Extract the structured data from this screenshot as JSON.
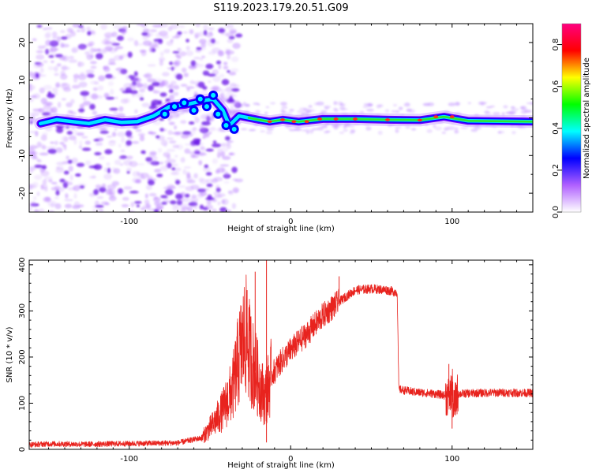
{
  "figure_title": "S119.2023.179.20.51.G09",
  "chart_data": [
    {
      "type": "heatmap",
      "subtype": "spectrogram",
      "xlabel": "Height of straight line (km)",
      "ylabel": "Frequency (Hz)",
      "xlim": [
        -162,
        150
      ],
      "ylim": [
        -25,
        25
      ],
      "x_ticks": [
        -100,
        0,
        100
      ],
      "y_ticks": [
        -20,
        -10,
        0,
        10,
        20
      ],
      "grid": false,
      "colorbar": {
        "label": "Normalized spectral amplitude",
        "ticks": [
          0.0,
          0.2,
          0.4,
          0.6,
          0.8
        ],
        "range": [
          0.0,
          0.9
        ],
        "colormap": "hsv",
        "stops": [
          "#ffffff",
          "#b060ff",
          "#0000ff",
          "#00ffff",
          "#00ff00",
          "#ffff00",
          "#ff0000",
          "#ff0080"
        ]
      },
      "ridge": {
        "description_points": [
          {
            "x": -155,
            "y": -1.5
          },
          {
            "x": -145,
            "y": -0.5
          },
          {
            "x": -135,
            "y": -1.0
          },
          {
            "x": -125,
            "y": -1.5
          },
          {
            "x": -115,
            "y": -0.5
          },
          {
            "x": -105,
            "y": -1.2
          },
          {
            "x": -95,
            "y": -1.0
          },
          {
            "x": -85,
            "y": 0.5
          },
          {
            "x": -75,
            "y": 3.0
          },
          {
            "x": -65,
            "y": 3.5
          },
          {
            "x": -55,
            "y": 4.5
          },
          {
            "x": -48,
            "y": 5.0
          },
          {
            "x": -42,
            "y": 2.0
          },
          {
            "x": -38,
            "y": -2.0
          },
          {
            "x": -32,
            "y": 0.5
          },
          {
            "x": -26,
            "y": 0.0
          },
          {
            "x": -20,
            "y": -0.5
          },
          {
            "x": -13,
            "y": -1.0
          },
          {
            "x": -5,
            "y": -0.5
          },
          {
            "x": 5,
            "y": -1.0
          },
          {
            "x": 20,
            "y": -0.3
          },
          {
            "x": 40,
            "y": -0.3
          },
          {
            "x": 60,
            "y": -0.5
          },
          {
            "x": 80,
            "y": -0.6
          },
          {
            "x": 95,
            "y": 0.3
          },
          {
            "x": 110,
            "y": -0.8
          },
          {
            "x": 130,
            "y": -0.9
          },
          {
            "x": 150,
            "y": -1.0
          }
        ]
      }
    },
    {
      "type": "line",
      "xlabel": "Height of straight line (km)",
      "ylabel": "SNR (10 * v/v)",
      "xlim": [
        -162,
        150
      ],
      "ylim": [
        0,
        410
      ],
      "x_ticks": [
        -100,
        0,
        100
      ],
      "y_ticks": [
        0,
        100,
        200,
        300,
        400
      ],
      "grid": false,
      "series": [
        {
          "color": "#e8231e",
          "values": [
            {
              "x": -162,
              "y": 10
            },
            {
              "x": -150,
              "y": 12
            },
            {
              "x": -130,
              "y": 11
            },
            {
              "x": -110,
              "y": 12
            },
            {
              "x": -90,
              "y": 13
            },
            {
              "x": -70,
              "y": 14
            },
            {
              "x": -55,
              "y": 25
            },
            {
              "x": -48,
              "y": 55
            },
            {
              "x": -42,
              "y": 85
            },
            {
              "x": -36,
              "y": 130
            },
            {
              "x": -32,
              "y": 200
            },
            {
              "x": -28,
              "y": 250
            },
            {
              "x": -24,
              "y": 190
            },
            {
              "x": -20,
              "y": 150
            },
            {
              "x": -16,
              "y": 110
            },
            {
              "x": -12,
              "y": 160
            },
            {
              "x": -6,
              "y": 190
            },
            {
              "x": 0,
              "y": 215
            },
            {
              "x": 10,
              "y": 250
            },
            {
              "x": 20,
              "y": 290
            },
            {
              "x": 30,
              "y": 320
            },
            {
              "x": 40,
              "y": 345
            },
            {
              "x": 50,
              "y": 348
            },
            {
              "x": 60,
              "y": 345
            },
            {
              "x": 66,
              "y": 340
            },
            {
              "x": 67,
              "y": 130
            },
            {
              "x": 75,
              "y": 125
            },
            {
              "x": 90,
              "y": 120
            },
            {
              "x": 99,
              "y": 115
            },
            {
              "x": 100,
              "y": 140
            },
            {
              "x": 101,
              "y": 85
            },
            {
              "x": 103,
              "y": 120
            },
            {
              "x": 115,
              "y": 122
            },
            {
              "x": 130,
              "y": 123
            },
            {
              "x": 150,
              "y": 122
            }
          ],
          "spikes": [
            {
              "x": -27,
              "y": 345
            },
            {
              "x": -22,
              "y": 385
            },
            {
              "x": -15,
              "y": 410
            },
            {
              "x": -15,
              "y": 15
            },
            {
              "x": 30,
              "y": 375
            },
            {
              "x": 98,
              "y": 185
            },
            {
              "x": 100,
              "y": 45
            }
          ]
        }
      ]
    }
  ]
}
